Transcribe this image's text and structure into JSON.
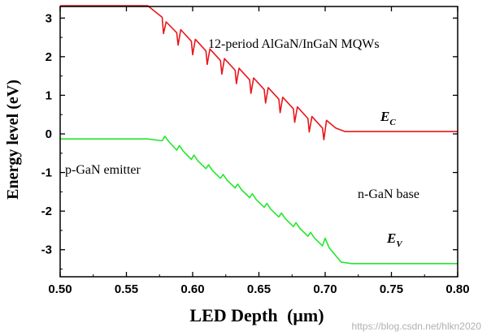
{
  "chart_data": {
    "type": "line",
    "title": "",
    "xlabel": "LED Depth",
    "xlabel_unit": "(μm)",
    "ylabel": "Energy level (eV)",
    "xlim": [
      0.5,
      0.8
    ],
    "ylim": [
      -3.7,
      3.3
    ],
    "xticks": [
      "0.50",
      "0.55",
      "0.60",
      "0.65",
      "0.70",
      "0.75",
      "0.80"
    ],
    "yticks": [
      "-3",
      "-2",
      "-1",
      "0",
      "1",
      "2",
      "3"
    ],
    "series": [
      {
        "name": "E_C",
        "label_main": "E",
        "label_sub": "C",
        "color": "#e8161b",
        "points": [
          [
            0.5,
            3.32
          ],
          [
            0.566,
            3.32
          ],
          [
            0.577,
            3.02
          ],
          [
            0.578,
            2.6
          ],
          [
            0.58,
            2.9
          ],
          [
            0.588,
            2.62
          ],
          [
            0.589,
            2.3
          ],
          [
            0.591,
            2.7
          ],
          [
            0.599,
            2.4
          ],
          [
            0.6,
            2.05
          ],
          [
            0.602,
            2.45
          ],
          [
            0.61,
            2.15
          ],
          [
            0.611,
            1.8
          ],
          [
            0.613,
            2.2
          ],
          [
            0.621,
            1.9
          ],
          [
            0.622,
            1.55
          ],
          [
            0.624,
            1.95
          ],
          [
            0.632,
            1.65
          ],
          [
            0.633,
            1.3
          ],
          [
            0.635,
            1.7
          ],
          [
            0.643,
            1.4
          ],
          [
            0.644,
            1.05
          ],
          [
            0.646,
            1.45
          ],
          [
            0.654,
            1.15
          ],
          [
            0.655,
            0.8
          ],
          [
            0.657,
            1.2
          ],
          [
            0.665,
            0.9
          ],
          [
            0.666,
            0.55
          ],
          [
            0.668,
            0.95
          ],
          [
            0.676,
            0.65
          ],
          [
            0.677,
            0.3
          ],
          [
            0.679,
            0.7
          ],
          [
            0.687,
            0.4
          ],
          [
            0.688,
            0.05
          ],
          [
            0.69,
            0.45
          ],
          [
            0.698,
            0.15
          ],
          [
            0.699,
            -0.15
          ],
          [
            0.701,
            0.35
          ],
          [
            0.708,
            0.15
          ],
          [
            0.715,
            0.06
          ],
          [
            0.8,
            0.06
          ]
        ]
      },
      {
        "name": "E_V",
        "label_main": "E",
        "label_sub": "V",
        "color": "#22e82b",
        "points": [
          [
            0.5,
            -0.13
          ],
          [
            0.566,
            -0.13
          ],
          [
            0.577,
            -0.18
          ],
          [
            0.579,
            -0.06
          ],
          [
            0.582,
            -0.2
          ],
          [
            0.588,
            -0.42
          ],
          [
            0.59,
            -0.3
          ],
          [
            0.593,
            -0.45
          ],
          [
            0.599,
            -0.66
          ],
          [
            0.601,
            -0.55
          ],
          [
            0.604,
            -0.7
          ],
          [
            0.61,
            -0.9
          ],
          [
            0.612,
            -0.8
          ],
          [
            0.615,
            -0.95
          ],
          [
            0.621,
            -1.15
          ],
          [
            0.623,
            -1.05
          ],
          [
            0.626,
            -1.2
          ],
          [
            0.632,
            -1.4
          ],
          [
            0.634,
            -1.3
          ],
          [
            0.637,
            -1.45
          ],
          [
            0.643,
            -1.65
          ],
          [
            0.645,
            -1.55
          ],
          [
            0.648,
            -1.7
          ],
          [
            0.654,
            -1.9
          ],
          [
            0.656,
            -1.8
          ],
          [
            0.659,
            -1.95
          ],
          [
            0.665,
            -2.15
          ],
          [
            0.667,
            -2.05
          ],
          [
            0.67,
            -2.2
          ],
          [
            0.676,
            -2.4
          ],
          [
            0.678,
            -2.3
          ],
          [
            0.681,
            -2.45
          ],
          [
            0.687,
            -2.65
          ],
          [
            0.689,
            -2.55
          ],
          [
            0.692,
            -2.7
          ],
          [
            0.698,
            -2.9
          ],
          [
            0.7,
            -2.7
          ],
          [
            0.703,
            -2.95
          ],
          [
            0.712,
            -3.32
          ],
          [
            0.72,
            -3.36
          ],
          [
            0.8,
            -3.36
          ]
        ]
      }
    ],
    "annotations": [
      {
        "text": "12-period AlGaN/InGaN MQWs"
      },
      {
        "text": "p-GaN emitter"
      },
      {
        "text": "n-GaN base"
      }
    ]
  },
  "watermark": "https://blog.csdn.net/hlkn2020"
}
